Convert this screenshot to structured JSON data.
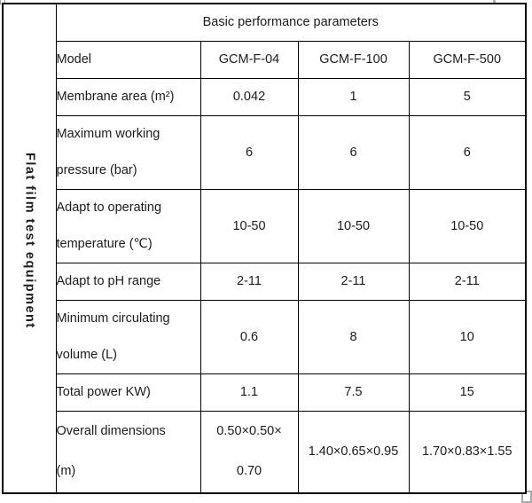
{
  "page": {
    "background_color": "#ffffff",
    "border_color": "#000000",
    "text_color": "#1c1c1c",
    "artifact_color": "#a8a8a8"
  },
  "table": {
    "vertical_label": "Flat film test equipment",
    "header": "Basic performance parameters",
    "rows": [
      {
        "label": "Model",
        "values": [
          "GCM-F-04",
          "GCM-F-100",
          "GCM-F-500"
        ]
      },
      {
        "label": "Membrane area (m²)",
        "values": [
          "0.042",
          "1",
          "5"
        ]
      },
      {
        "label": "Maximum working\npressure (bar)",
        "values": [
          "6",
          "6",
          "6"
        ]
      },
      {
        "label": "Adapt to operating\ntemperature (℃)",
        "values": [
          "10-50",
          "10-50",
          "10-50"
        ]
      },
      {
        "label": "Adapt to pH range",
        "values": [
          "2-11",
          "2-11",
          "2-11"
        ]
      },
      {
        "label": "Minimum circulating\nvolume (L)",
        "values": [
          "0.6",
          "8",
          "10"
        ]
      },
      {
        "label": "Total power KW)",
        "values": [
          "1.1",
          "7.5",
          "15"
        ]
      },
      {
        "label": "Overall dimensions\n(m)",
        "values": [
          "0.50×0.50×\n0.70",
          "1.40×0.65×0.95",
          "1.70×0.83×1.55"
        ]
      }
    ]
  }
}
